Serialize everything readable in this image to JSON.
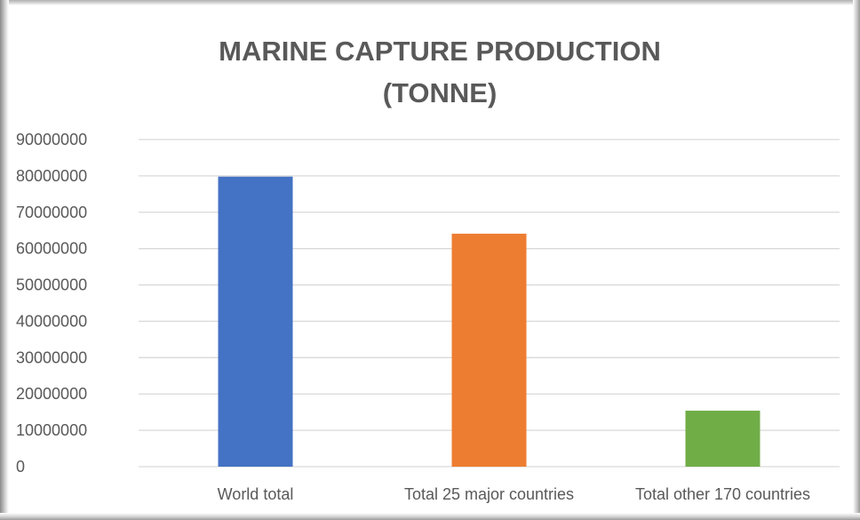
{
  "chart_data": {
    "type": "bar",
    "title_lines": [
      "MARINE CAPTURE PRODUCTION",
      "(TONNE)"
    ],
    "categories": [
      "World total",
      "Total 25 major countries",
      "Total other 170 countries"
    ],
    "values": [
      79800000,
      64100000,
      15400000
    ],
    "colors": [
      "#4472C4",
      "#ED7D31",
      "#70AD47"
    ],
    "ylim": [
      0,
      90000000
    ],
    "yticks": [
      "0",
      "10000000",
      "20000000",
      "30000000",
      "40000000",
      "50000000",
      "60000000",
      "70000000",
      "80000000",
      "90000000"
    ],
    "grid": true,
    "legend": "none"
  }
}
